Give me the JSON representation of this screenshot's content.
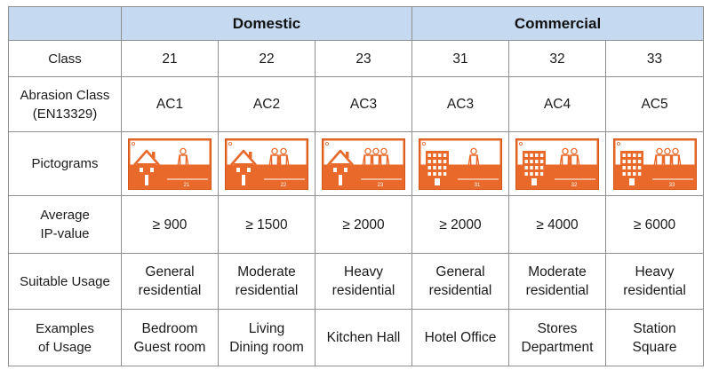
{
  "groups": {
    "domestic": "Domestic",
    "commercial": "Commercial"
  },
  "rows": {
    "class": {
      "label": "Class",
      "values": [
        "21",
        "22",
        "23",
        "31",
        "32",
        "33"
      ]
    },
    "abrasion": {
      "label_lines": [
        "Abrasion Class",
        "(EN13329)"
      ],
      "values": [
        "AC1",
        "AC2",
        "AC3",
        "AC3",
        "AC4",
        "AC5"
      ]
    },
    "pictograms": {
      "label": "Pictograms",
      "items": [
        {
          "building": "house-icon",
          "people": 1,
          "code": "21"
        },
        {
          "building": "house-icon",
          "people": 2,
          "code": "22"
        },
        {
          "building": "house-icon",
          "people": 3,
          "code": "23"
        },
        {
          "building": "office-building-icon",
          "people": 1,
          "code": "31"
        },
        {
          "building": "office-building-icon",
          "people": 2,
          "code": "32"
        },
        {
          "building": "office-building-icon",
          "people": 3,
          "code": "33"
        }
      ],
      "colors": {
        "orange": "#e8692a",
        "white": "#ffffff"
      }
    },
    "ip": {
      "label_lines": [
        "Average",
        "IP-value"
      ],
      "values": [
        "≥ 900",
        "≥ 1500",
        "≥ 2000",
        "≥ 2000",
        "≥ 4000",
        "≥ 6000"
      ]
    },
    "usage": {
      "label": "Suitable Usage",
      "values": [
        [
          "General",
          "residential"
        ],
        [
          "Moderate",
          "residential"
        ],
        [
          "Heavy",
          "residential"
        ],
        [
          "General",
          "residential"
        ],
        [
          "Moderate",
          "residential"
        ],
        [
          "Heavy",
          "residential"
        ]
      ]
    },
    "examples": {
      "label_lines": [
        "Examples",
        "of Usage"
      ],
      "values": [
        [
          "Bedroom",
          "Guest room"
        ],
        [
          "Living",
          "Dining room"
        ],
        [
          "Kitchen Hall"
        ],
        [
          "Hotel Office"
        ],
        [
          "Stores",
          "Department"
        ],
        [
          "Station",
          "Square"
        ]
      ]
    }
  }
}
